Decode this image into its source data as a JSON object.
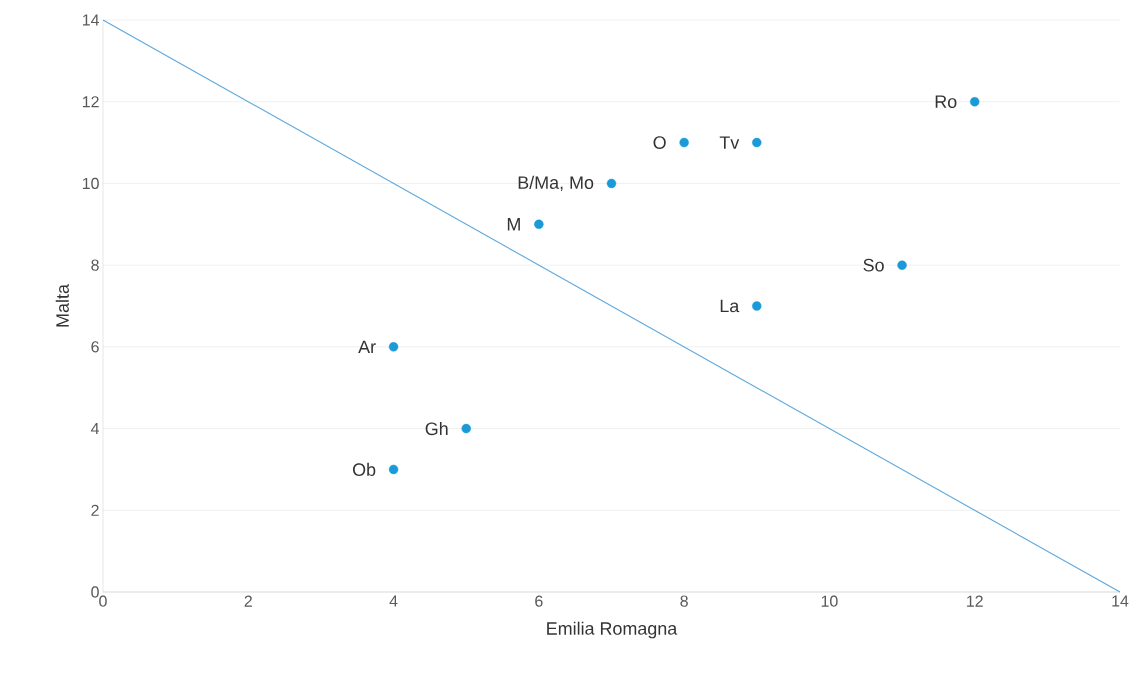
{
  "chart_data": {
    "type": "scatter",
    "xlabel": "Emilia Romagna",
    "ylabel": "Malta",
    "xlim": [
      0,
      14
    ],
    "ylim": [
      0,
      14
    ],
    "xticks": [
      0,
      2,
      4,
      6,
      8,
      10,
      12,
      14
    ],
    "yticks": [
      0,
      2,
      4,
      6,
      8,
      10,
      12,
      14
    ],
    "grid": "y",
    "series": [
      {
        "marker": "circle",
        "color": "#1b9ad8",
        "x": [
          12,
          8,
          9,
          7,
          6,
          11,
          9,
          4,
          5,
          4
        ],
        "values": [
          12,
          11,
          11,
          10,
          9,
          8,
          7,
          6,
          4,
          3
        ]
      },
      {
        "type": "line",
        "color": "#5ba7dd",
        "x": [
          0,
          14
        ],
        "values": [
          14,
          0
        ]
      }
    ],
    "annotations": [
      {
        "text": "Ro",
        "x": 12,
        "y": 12
      },
      {
        "text": "O",
        "x": 8,
        "y": 11
      },
      {
        "text": "Tv",
        "x": 9,
        "y": 11
      },
      {
        "text": "B/Ma, Mo",
        "x": 7,
        "y": 10
      },
      {
        "text": "M",
        "x": 6,
        "y": 9
      },
      {
        "text": "So",
        "x": 11,
        "y": 8
      },
      {
        "text": "La",
        "x": 9,
        "y": 7
      },
      {
        "text": "Ar",
        "x": 4,
        "y": 6
      },
      {
        "text": "Gh",
        "x": 5,
        "y": 4
      },
      {
        "text": "Ob",
        "x": 4,
        "y": 3
      }
    ]
  }
}
